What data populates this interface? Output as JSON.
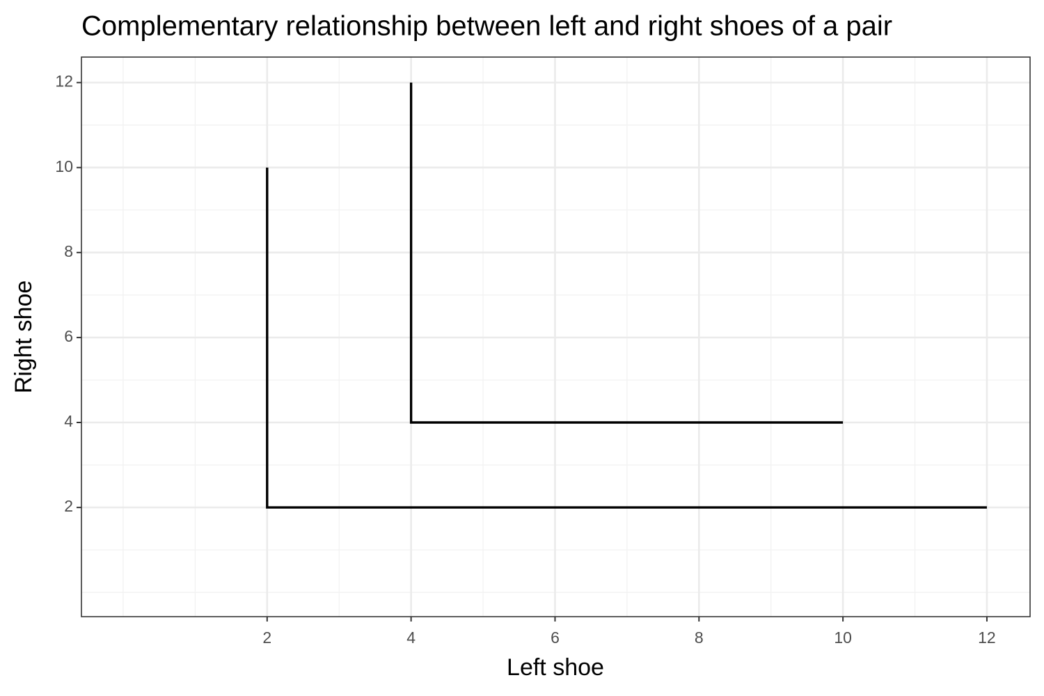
{
  "chart_data": {
    "type": "line",
    "title": "Complementary relationship between left and right shoes of a pair",
    "x_label": "Left shoe",
    "y_label": "Right shoe",
    "xlim": [
      -0.58,
      12.6
    ],
    "ylim": [
      -0.57,
      12.6
    ],
    "xticks": [
      2,
      4,
      6,
      8,
      10,
      12
    ],
    "yticks": [
      2,
      4,
      6,
      8,
      10,
      12
    ],
    "x_minor_grid": [
      0,
      1,
      3,
      5,
      7,
      9,
      11
    ],
    "y_minor_grid": [
      0,
      1,
      3,
      5,
      7,
      9,
      11
    ],
    "grid": true,
    "series": [
      {
        "color": "#000000",
        "x": [
          2,
          2,
          12
        ],
        "values": [
          10,
          2,
          2
        ]
      },
      {
        "color": "#000000",
        "x": [
          4,
          4,
          10
        ],
        "values": [
          12,
          4,
          4
        ]
      }
    ]
  }
}
